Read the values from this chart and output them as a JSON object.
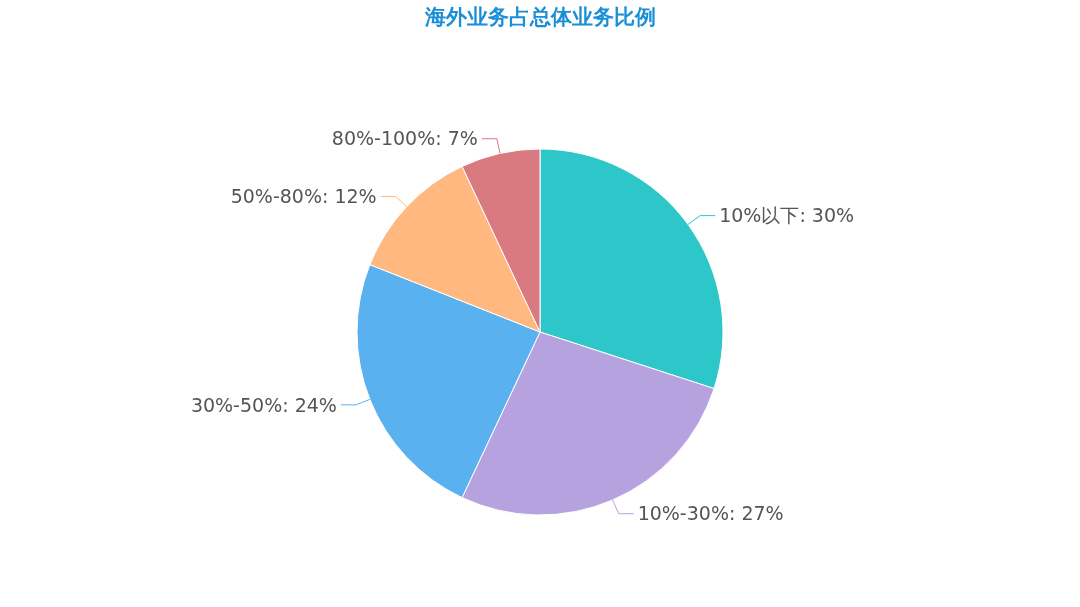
{
  "chart_data": {
    "type": "pie",
    "title": "海外业务占总体业务比例",
    "categories": [
      "10%以下",
      "10%-30%",
      "30%-50%",
      "50%-80%",
      "80%-100%"
    ],
    "values": [
      30,
      27,
      24,
      12,
      7
    ],
    "value_labels": [
      "30%",
      "27%",
      "24%",
      "12%",
      "7%"
    ],
    "colors": [
      "#2ec7c9",
      "#b6a2de",
      "#5ab1ef",
      "#ffb980",
      "#d87a80"
    ]
  }
}
